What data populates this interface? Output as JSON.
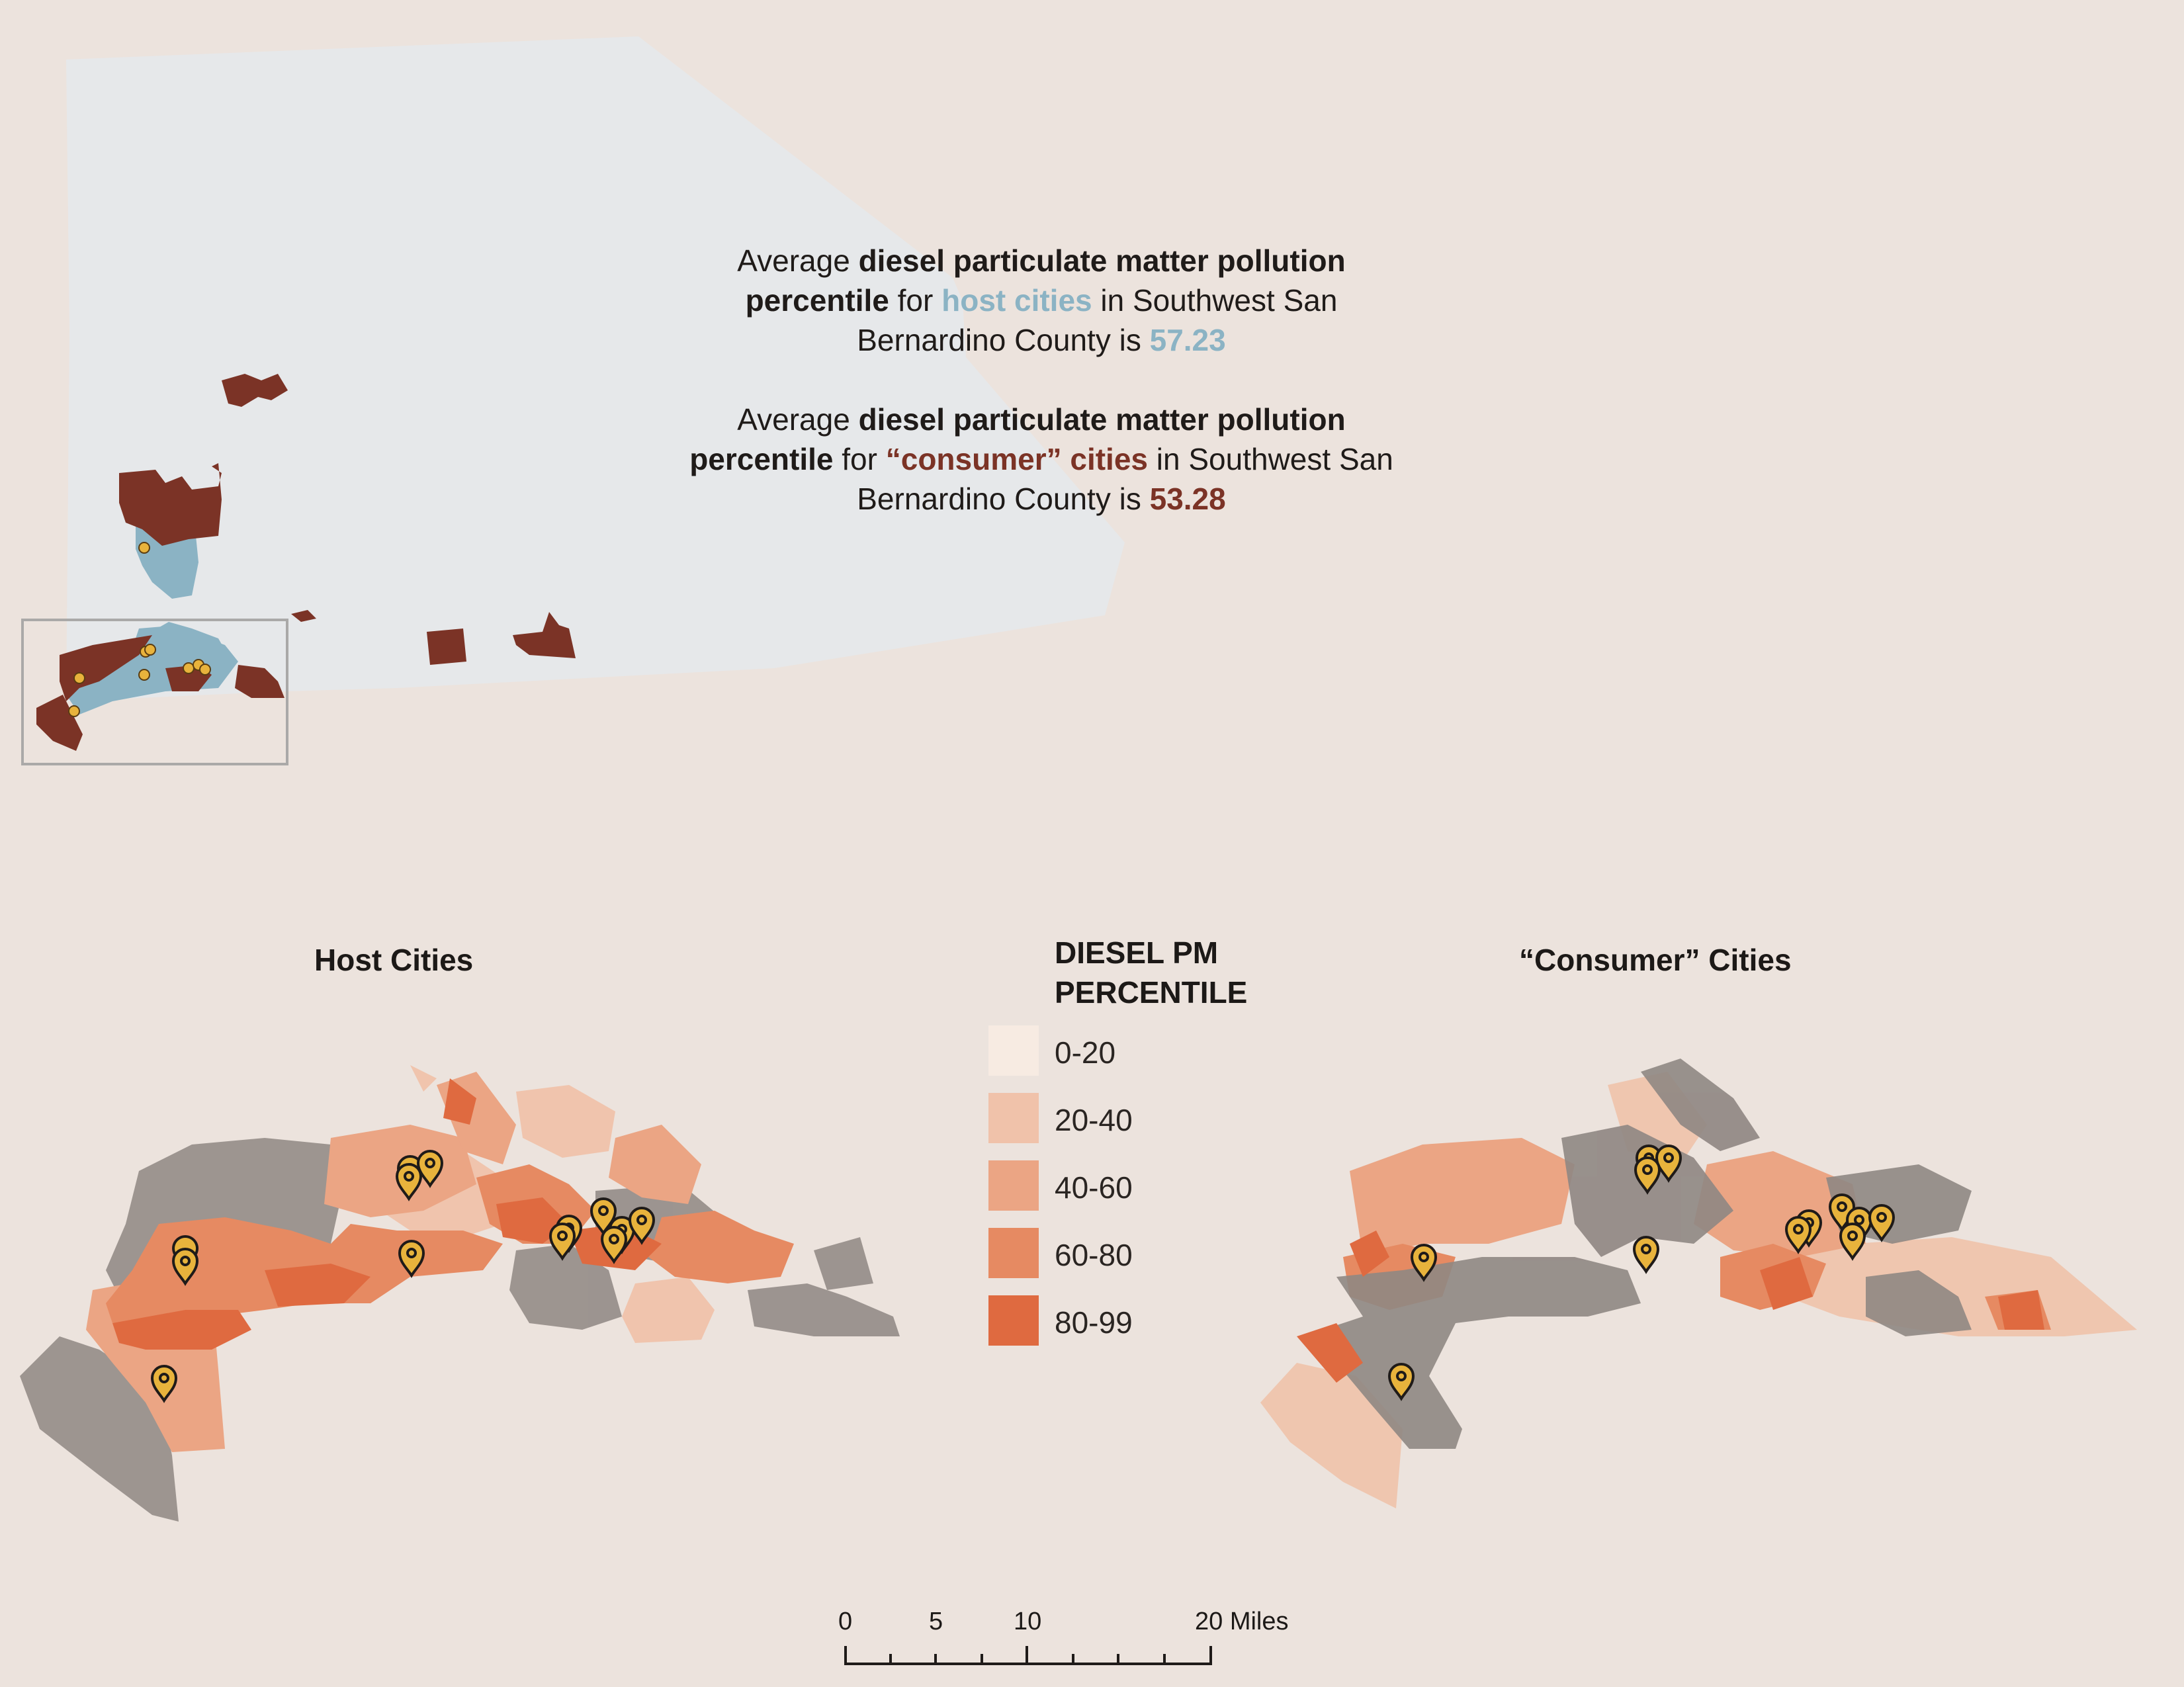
{
  "stat_host": {
    "p1": "Average ",
    "b1": "diesel particulate matter pollution percentile",
    "p2": " for ",
    "hl": "host cities",
    "p3": " in Southwest San Bernardino County is ",
    "value": "57.23"
  },
  "stat_consumer": {
    "p1": "Average ",
    "b1": "diesel particulate matter pollution percentile",
    "p2": " for ",
    "hl": "“consumer” cities",
    "p3": " in Southwest San Bernardino County is ",
    "value": "53.28"
  },
  "maps": {
    "host_title": "Host Cities",
    "consumer_title": "“Consumer” Cities"
  },
  "legend": {
    "title_line1": "DIESEL PM",
    "title_line2": "PERCENTILE",
    "items": [
      {
        "label": "0-20",
        "color": "#f7ebe2"
      },
      {
        "label": "20-40",
        "color": "#f0c2aa"
      },
      {
        "label": "40-60",
        "color": "#eba584"
      },
      {
        "label": "60-80",
        "color": "#e68a62"
      },
      {
        "label": "80-99",
        "color": "#df6a40"
      }
    ]
  },
  "scale_bar": {
    "ticks": [
      "0",
      "5",
      "10",
      "20 Miles"
    ]
  },
  "colors": {
    "county": "#e6e8ea",
    "host_city": "#8bb3c4",
    "consumer_city": "#7b3326",
    "marker": "#e8b33c",
    "background": "#ece3dd",
    "low_percentile_grey": "#8f8783"
  }
}
